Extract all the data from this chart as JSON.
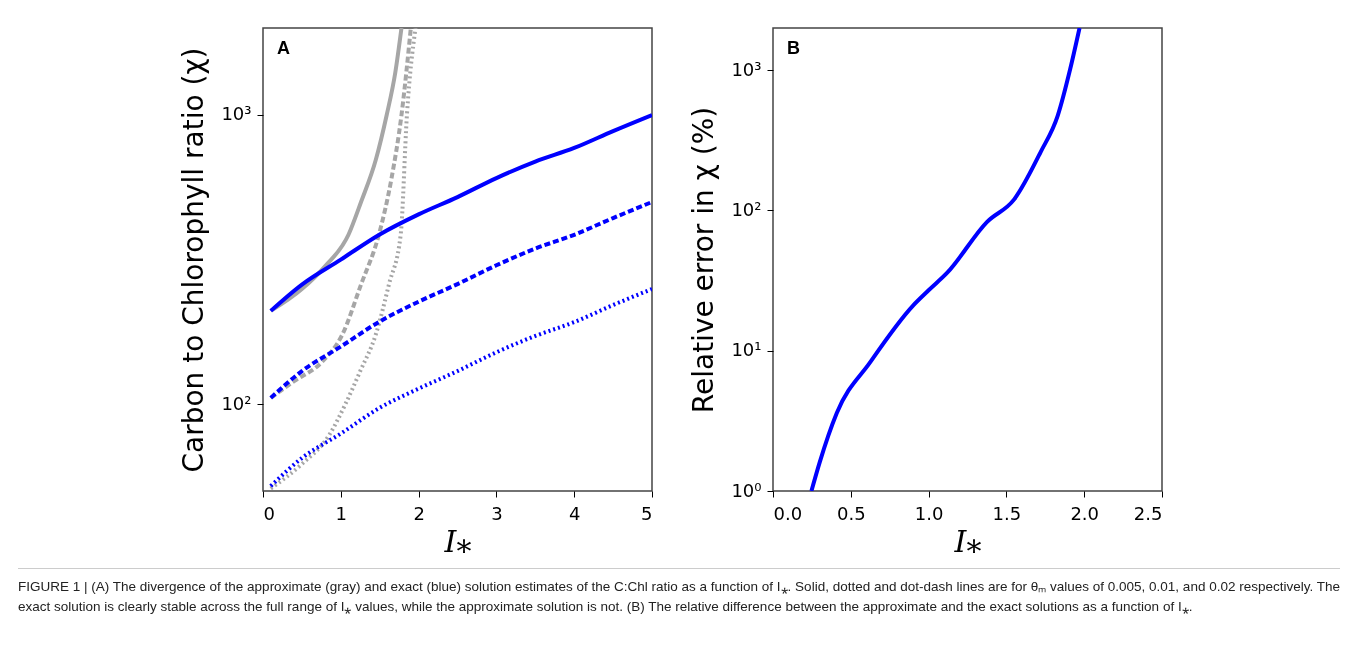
{
  "chart_data": [
    {
      "type": "line",
      "ylabel": "Carbon to Chlorophyll ratio (χ)",
      "xlabel": "I⁎",
      "xlim": [
        0,
        5
      ],
      "ylim": [
        50,
        2000
      ],
      "log": true,
      "grid": false,
      "marker": "none",
      "xticks": [
        0,
        1,
        2,
        3,
        4,
        5
      ],
      "yticks": [
        {
          "value": 100,
          "label": "10²"
        },
        {
          "value": 1000,
          "label": "10³"
        }
      ],
      "annotations": [
        "A",
        "FIGURE 1 | (A) The divergence of the approximate (gray) and exact (blue) solution estimates of the C:Chl ratio as a function of I⁎. Solid, dotted and dot-dash lines are for θₘ values of 0.005, 0.01, and 0.02 respectively. The exact solution is clearly stable across the full range of I⁎ values, while the approximate solution is not. (B) The relative difference between the approximate and the exact solutions as a function of I⁎."
      ],
      "series": [
        {
          "color": "#a6a6a6",
          "line_style": "solid",
          "x": [
            0.1,
            0.5,
            0.8,
            1.1,
            1.26,
            1.45,
            1.59,
            1.7,
            1.78
          ],
          "values": [
            210,
            250,
            300,
            386,
            500,
            700,
            1000,
            1400,
            2000
          ]
        },
        {
          "color": "#a6a6a6",
          "line_style": "dashed",
          "x": [
            0.1,
            0.4,
            0.76,
            1.02,
            1.26,
            1.49,
            1.65,
            1.78,
            1.9
          ],
          "values": [
            105,
            120,
            140,
            174,
            259,
            386,
            600,
            1000,
            2000
          ]
        },
        {
          "color": "#a6a6a6",
          "line_style": "dotted",
          "x": [
            0.1,
            0.5,
            0.85,
            1.06,
            1.25,
            1.45,
            1.62,
            1.77,
            1.85,
            1.96
          ],
          "values": [
            51,
            62,
            78,
            100,
            130,
            174,
            260,
            386,
            1000,
            2000
          ]
        },
        {
          "color": "#0000ff",
          "line_style": "solid",
          "x": [
            0.1,
            0.5,
            1,
            1.5,
            2,
            2.5,
            3,
            3.5,
            4,
            4.5,
            5
          ],
          "values": [
            210,
            259,
            316,
            386,
            453,
            520,
            605,
            690,
            769,
            880,
            1000
          ]
        },
        {
          "color": "#0000ff",
          "line_style": "dashed",
          "x": [
            0.1,
            0.5,
            1,
            1.5,
            2,
            2.5,
            3,
            3.5,
            4,
            4.5,
            5
          ],
          "values": [
            105,
            130,
            158,
            193,
            226,
            260,
            302,
            345,
            385,
            440,
            500
          ]
        },
        {
          "color": "#0000ff",
          "line_style": "dotted",
          "x": [
            0.1,
            0.5,
            1,
            1.5,
            2,
            2.5,
            3,
            3.5,
            4,
            4.5,
            5
          ],
          "values": [
            52,
            65,
            79,
            97,
            113,
            130,
            151,
            172,
            192,
            220,
            250
          ]
        }
      ]
    },
    {
      "type": "line",
      "ylabel": "Relative error in χ (%)",
      "xlabel": "I⁎",
      "xlim": [
        0,
        2.5
      ],
      "ylim": [
        1,
        2000
      ],
      "log": true,
      "grid": false,
      "marker": "none",
      "xticks": [
        {
          "value": 0,
          "label": "0.0"
        },
        0.5,
        {
          "value": 1,
          "label": "1.0"
        },
        1.5,
        {
          "value": 2,
          "label": "2.0"
        },
        2.5
      ],
      "yticks": [
        {
          "value": 1,
          "label": "10⁰"
        },
        {
          "value": 10,
          "label": "10¹"
        },
        {
          "value": 100,
          "label": "10²"
        },
        {
          "value": 1000,
          "label": "10³"
        }
      ],
      "annotations": [
        "B"
      ],
      "series": [
        {
          "color": "#0000ff",
          "line_style": "solid",
          "x": [
            0.247,
            0.3,
            0.41,
            0.625,
            0.9,
            1.0,
            1.12,
            1.376,
            1.55,
            1.72,
            1.83,
            1.91,
            1.97
          ],
          "values": [
            1,
            1.6,
            3.6,
            8.3,
            21,
            27,
            36,
            83,
            120,
            261,
            475,
            1020,
            2000
          ]
        }
      ]
    }
  ]
}
